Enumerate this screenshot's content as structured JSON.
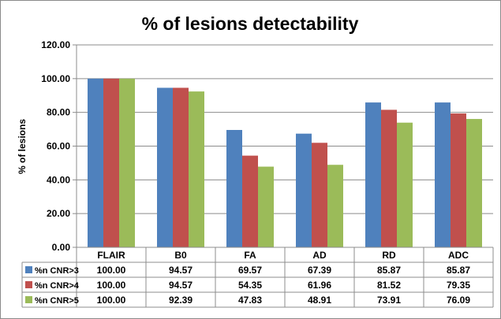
{
  "chart_data": {
    "type": "bar",
    "title": "% of lesions detectability",
    "xlabel": "",
    "ylabel": "% of lesions",
    "ylim": [
      0,
      120
    ],
    "yticks": [
      "0.00",
      "20.00",
      "40.00",
      "60.00",
      "80.00",
      "100.00",
      "120.00"
    ],
    "grid": true,
    "legend_placement": "data-table",
    "categories": [
      "FLAIR",
      "B0",
      "FA",
      "AD",
      "RD",
      "ADC"
    ],
    "series": [
      {
        "name": "%n CNR>3",
        "color": "#4F81BD",
        "values": [
          100.0,
          94.57,
          69.57,
          67.39,
          85.87,
          85.87
        ],
        "labels": [
          "100.00",
          "94.57",
          "69.57",
          "67.39",
          "85.87",
          "85.87"
        ]
      },
      {
        "name": "%n CNR>4",
        "color": "#C0504D",
        "values": [
          100.0,
          94.57,
          54.35,
          61.96,
          81.52,
          79.35
        ],
        "labels": [
          "100.00",
          "94.57",
          "54.35",
          "61.96",
          "81.52",
          "79.35"
        ]
      },
      {
        "name": "%n CNR>5",
        "color": "#9BBB59",
        "values": [
          100.0,
          92.39,
          47.83,
          48.91,
          73.91,
          76.09
        ],
        "labels": [
          "100.00",
          "92.39",
          "47.83",
          "48.91",
          "73.91",
          "76.09"
        ]
      }
    ]
  }
}
